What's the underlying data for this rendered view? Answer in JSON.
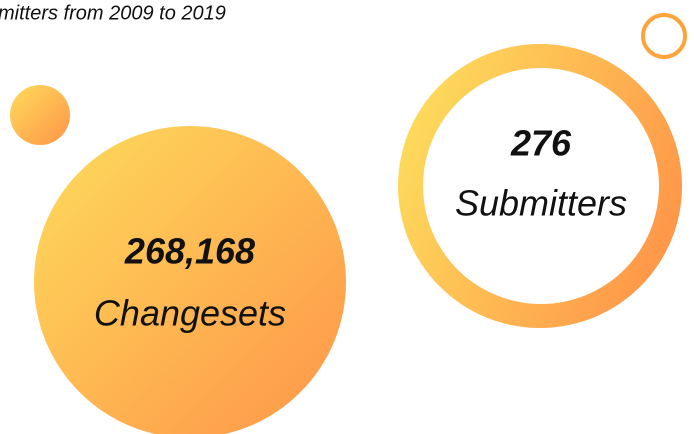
{
  "title": "mitters from 2009 to 2019",
  "stats": [
    {
      "value": "268,168",
      "label": "Changesets"
    },
    {
      "value": "276",
      "label": "Submitters"
    }
  ]
}
